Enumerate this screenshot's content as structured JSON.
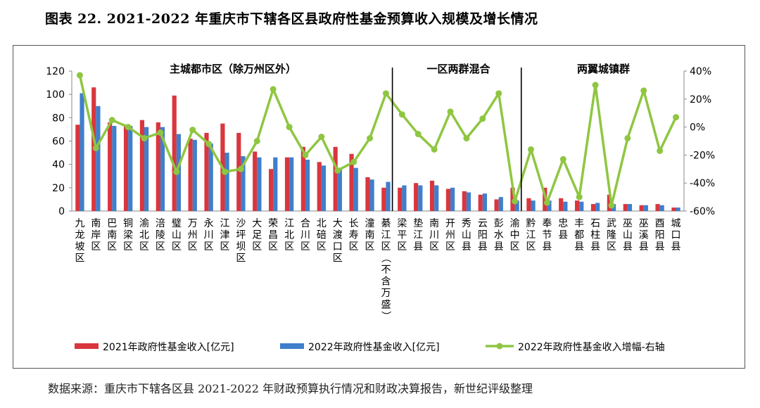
{
  "figure": {
    "title": "图表 22. 2021-2022 年重庆市下辖各区县政府性基金预算收入规模及增长情况",
    "source": "数据来源：重庆市下辖各区县 2021-2022 年财政预算执行情况和财政决算报告，新世纪评级整理"
  },
  "chart_data": {
    "type": "bar",
    "categories": [
      "九龙坡区",
      "南岸区",
      "巴南区",
      "铜梁区",
      "渝北区",
      "涪陵区",
      "璧山区",
      "万州区",
      "永川区",
      "江津区",
      "沙坪坝区",
      "大足区",
      "荣昌区",
      "江北区",
      "合川区",
      "北碚区",
      "大渡口区",
      "长寿区",
      "潼南区",
      "綦江区（不含万盛）",
      "梁平区",
      "垫江县",
      "南川区",
      "开州区",
      "秀山县",
      "云阳县",
      "彭水县",
      "渝中区",
      "黔江区",
      "奉节县",
      "忠县",
      "丰都县",
      "石柱县",
      "武隆区",
      "巫山县",
      "巫溪县",
      "酉阳县",
      "城口县"
    ],
    "series": [
      {
        "name": "2021年政府性基金收入[亿元]",
        "kind": "bar",
        "axis": "left",
        "color": "#d9363e",
        "values": [
          74,
          106,
          76,
          74,
          78,
          76,
          99,
          62,
          67,
          75,
          67,
          51,
          36,
          46,
          55,
          42,
          55,
          49,
          29,
          20,
          20,
          24,
          26,
          19,
          17,
          14,
          10,
          20,
          11,
          20,
          11,
          9,
          6,
          14,
          6,
          5,
          6,
          3
        ]
      },
      {
        "name": "2022年政府性基金收入[亿元]",
        "kind": "bar",
        "axis": "left",
        "color": "#3f7fcc",
        "values": [
          101,
          90,
          73,
          73,
          72,
          72,
          66,
          61,
          58,
          50,
          47,
          46,
          46,
          46,
          44,
          39,
          37,
          37,
          27,
          25,
          22,
          22,
          22,
          20,
          16,
          15,
          12,
          9,
          9,
          9,
          8,
          8,
          7,
          6,
          6,
          5,
          5,
          3
        ]
      },
      {
        "name": "2022年政府性基金收入增幅-右轴",
        "kind": "line",
        "axis": "right",
        "color": "#8fc641",
        "values": [
          37,
          -15,
          5,
          0,
          -8,
          -4,
          -32,
          -2,
          -12,
          -32,
          -30,
          -10,
          27,
          0,
          -20,
          -7,
          -31,
          -25,
          -8,
          24,
          9,
          -5,
          -16,
          11,
          -8,
          6,
          24,
          -53,
          -16,
          -54,
          -23,
          -50,
          30,
          -56,
          -8,
          26,
          -17,
          7
        ]
      }
    ],
    "ylim_left": [
      0,
      120
    ],
    "yticks_left": [
      0,
      20,
      40,
      60,
      80,
      100,
      120
    ],
    "ylim_right": [
      -60,
      40
    ],
    "yticks_right": [
      "-60%",
      "-40%",
      "-20%",
      "0%",
      "20%",
      "40%"
    ],
    "groups": [
      {
        "label": "主城都市区（除万州区外）",
        "from": 0,
        "to": 19
      },
      {
        "label": "一区两群混合",
        "from": 20,
        "to": 27
      },
      {
        "label": "两翼城镇群",
        "from": 28,
        "to": 37
      }
    ],
    "legend_position": "bottom",
    "grid": false
  }
}
